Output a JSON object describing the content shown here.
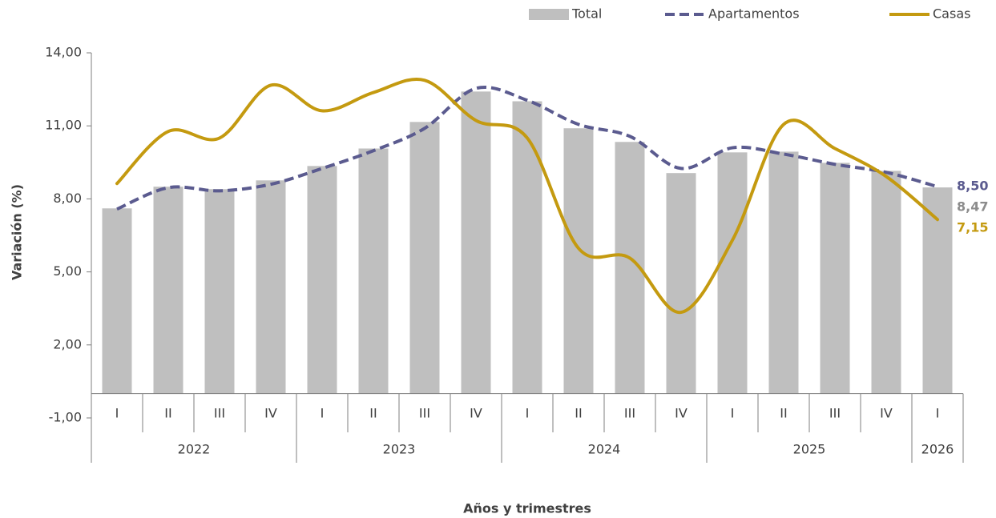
{
  "chart_data": {
    "type": "bar-line",
    "y_label": "Variación (%)",
    "x_label": "Años y trimestres",
    "categories": [
      "I",
      "II",
      "III",
      "IV",
      "I",
      "II",
      "III",
      "IV",
      "I",
      "II",
      "III",
      "IV",
      "I",
      "II",
      "III",
      "IV",
      "I"
    ],
    "years": [
      {
        "label": "2022",
        "count": 4
      },
      {
        "label": "2023",
        "count": 4
      },
      {
        "label": "2024",
        "count": 4
      },
      {
        "label": "2025",
        "count": 4
      },
      {
        "label": "2026",
        "count": 1
      }
    ],
    "ylim": [
      -1,
      14
    ],
    "yticks": [
      {
        "value": -1,
        "label": "-1,00"
      },
      {
        "value": 2,
        "label": "2,00"
      },
      {
        "value": 5,
        "label": "5,00"
      },
      {
        "value": 8,
        "label": "8,00"
      },
      {
        "value": 11,
        "label": "11,00"
      },
      {
        "value": 14,
        "label": "14,00"
      }
    ],
    "series": [
      {
        "name": "Total",
        "kind": "bar",
        "color": "#bfbfbf",
        "label_color": "#8c8c8c",
        "values": [
          7.61,
          8.5,
          8.4,
          8.76,
          9.35,
          10.07,
          11.16,
          12.41,
          12.01,
          10.9,
          10.34,
          9.06,
          9.91,
          9.94,
          9.48,
          9.15,
          8.47
        ],
        "value_labels": [
          null,
          null,
          null,
          null,
          null,
          null,
          null,
          null,
          null,
          null,
          null,
          null,
          null,
          null,
          null,
          null,
          "8,47"
        ]
      },
      {
        "name": "Apartamentos",
        "kind": "dashed",
        "color": "#5b5b8f",
        "label_color": "#5b5b8f",
        "values": [
          7.58,
          8.46,
          8.33,
          8.6,
          9.25,
          9.98,
          10.9,
          12.54,
          12.05,
          11.06,
          10.57,
          9.25,
          10.1,
          9.84,
          9.42,
          9.09,
          8.5
        ],
        "value_labels": [
          null,
          null,
          null,
          null,
          null,
          null,
          null,
          null,
          null,
          null,
          null,
          null,
          null,
          null,
          null,
          null,
          "8,50"
        ]
      },
      {
        "name": "Casas",
        "kind": "line",
        "color": "#c49a10",
        "label_color": "#c49a10",
        "values": [
          8.63,
          10.77,
          10.5,
          12.67,
          11.62,
          12.37,
          12.87,
          11.22,
          10.5,
          5.97,
          5.57,
          3.34,
          6.3,
          11.06,
          10.07,
          8.92,
          7.15
        ],
        "value_labels": [
          null,
          null,
          null,
          null,
          null,
          null,
          null,
          null,
          null,
          null,
          null,
          null,
          null,
          null,
          null,
          null,
          "7,15"
        ]
      }
    ]
  }
}
